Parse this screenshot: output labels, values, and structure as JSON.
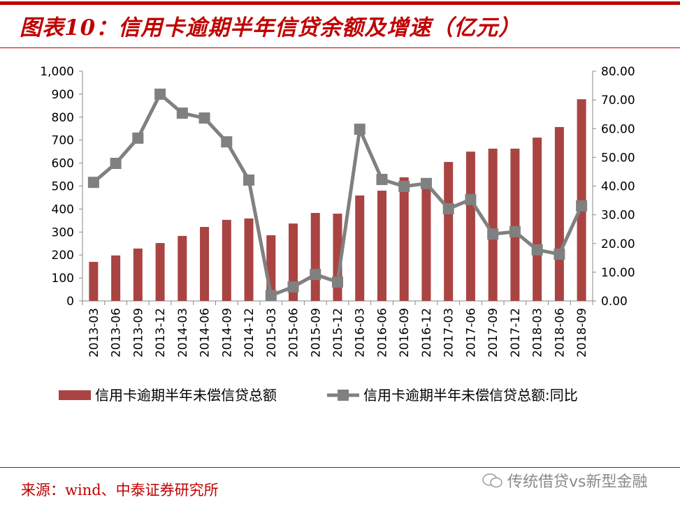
{
  "title": "图表10：信用卡逾期半年信贷余额及增速（亿元）",
  "source": "来源：wind、中泰证券研究所",
  "watermark": "传统借贷vs新型金融",
  "chart_data": {
    "type": "bar+line",
    "categories": [
      "2013-03",
      "2013-06",
      "2013-09",
      "2013-12",
      "2014-03",
      "2014-06",
      "2014-09",
      "2014-12",
      "2015-03",
      "2015-06",
      "2015-09",
      "2015-12",
      "2016-03",
      "2016-06",
      "2016-09",
      "2016-12",
      "2017-03",
      "2017-06",
      "2017-09",
      "2017-12",
      "2018-03",
      "2018-06",
      "2018-09"
    ],
    "series": [
      {
        "name": "信用卡逾期半年未偿信贷总额",
        "type": "bar",
        "axis": "left",
        "color": "#a94442",
        "values": [
          170,
          198,
          228,
          252,
          283,
          322,
          353,
          359,
          286,
          337,
          383,
          380,
          459,
          480,
          538,
          505,
          605,
          650,
          663,
          663,
          711,
          757,
          878
        ]
      },
      {
        "name": "信用卡逾期半年未偿信贷总额:同比",
        "type": "line",
        "axis": "right",
        "color": "#808080",
        "values": [
          41.3,
          47.9,
          56.7,
          72.0,
          65.4,
          63.7,
          55.4,
          42.1,
          1.9,
          4.9,
          9.2,
          6.6,
          59.8,
          42.3,
          39.9,
          40.9,
          32.1,
          35.3,
          23.3,
          24.1,
          17.8,
          16.3,
          33.1
        ]
      }
    ],
    "left_axis": {
      "ylim": [
        0,
        1000
      ],
      "ticks": [
        "0",
        "100",
        "200",
        "300",
        "400",
        "500",
        "600",
        "700",
        "800",
        "900",
        "1,000"
      ]
    },
    "right_axis": {
      "ylim": [
        0,
        80
      ],
      "ticks": [
        "0.00",
        "10.00",
        "20.00",
        "30.00",
        "40.00",
        "50.00",
        "60.00",
        "70.00",
        "80.00"
      ]
    },
    "legend": "bottom",
    "grid": false
  }
}
